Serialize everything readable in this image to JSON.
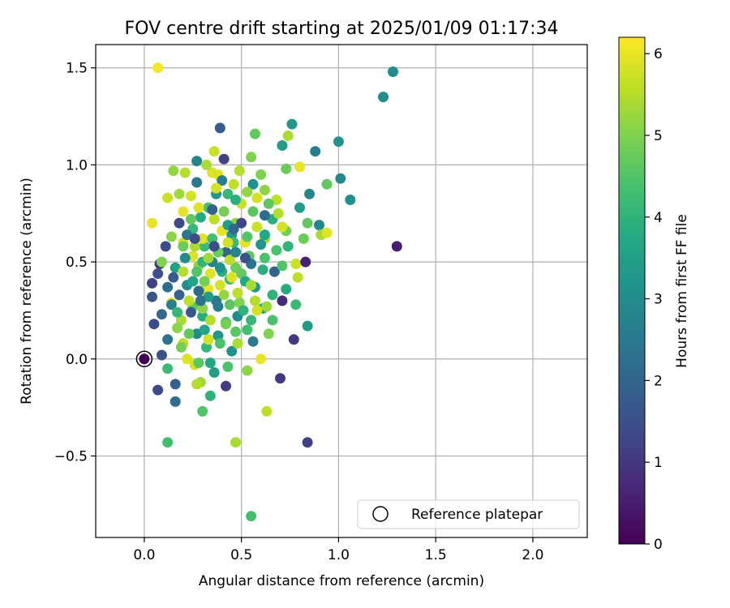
{
  "chart_data": {
    "type": "scatter",
    "title": "FOV centre drift starting at 2025/01/09 01:17:34",
    "xlabel": "Angular distance from reference (arcmin)",
    "ylabel": "Rotation from reference (arcmin)",
    "colorbar_label": "Hours from first FF file",
    "xlim": [
      -0.25,
      2.28
    ],
    "ylim": [
      -0.92,
      1.62
    ],
    "clim": [
      0,
      6.2
    ],
    "x_ticks": [
      0.0,
      0.5,
      1.0,
      1.5,
      2.0
    ],
    "x_tick_labels": [
      "0.0",
      "0.5",
      "1.0",
      "1.5",
      "2.0"
    ],
    "y_ticks": [
      -0.5,
      0.0,
      0.5,
      1.0,
      1.5
    ],
    "y_tick_labels": [
      "−0.5",
      "0.0",
      "0.5",
      "1.0",
      "1.5"
    ],
    "colorbar_ticks": [
      0,
      1,
      2,
      3,
      4,
      5,
      6
    ],
    "colorbar_tick_labels": [
      "0",
      "1",
      "2",
      "3",
      "4",
      "5",
      "6"
    ],
    "colormap": "viridis",
    "grid": true,
    "legend": {
      "placement": "lower-right",
      "entries": [
        {
          "label": "Reference platepar",
          "marker": "open-circle"
        }
      ]
    },
    "reference_point": {
      "x": 0.0,
      "y": 0.0,
      "hours": 0
    },
    "points": [
      [
        0.07,
        1.5,
        6.1
      ],
      [
        1.28,
        1.48,
        3.0
      ],
      [
        1.23,
        1.35,
        3.0
      ],
      [
        0.39,
        1.19,
        1.8
      ],
      [
        0.76,
        1.21,
        3.3
      ],
      [
        0.57,
        1.16,
        4.7
      ],
      [
        0.71,
        1.1,
        3.4
      ],
      [
        0.74,
        1.15,
        5.4
      ],
      [
        1.0,
        1.12,
        3.2
      ],
      [
        0.88,
        1.07,
        2.6
      ],
      [
        0.36,
        1.07,
        5.7
      ],
      [
        0.41,
        1.03,
        1.2
      ],
      [
        0.27,
        1.02,
        2.8
      ],
      [
        0.55,
        1.04,
        5.0
      ],
      [
        0.8,
        0.99,
        6.0
      ],
      [
        0.73,
        0.98,
        4.8
      ],
      [
        0.15,
        0.97,
        5.2
      ],
      [
        0.21,
        0.96,
        5.5
      ],
      [
        1.01,
        0.93,
        2.9
      ],
      [
        1.06,
        0.82,
        3.1
      ],
      [
        0.94,
        0.9,
        4.7
      ],
      [
        0.27,
        0.91,
        2.5
      ],
      [
        0.37,
        0.85,
        3.2
      ],
      [
        0.46,
        0.9,
        5.6
      ],
      [
        0.62,
        0.87,
        5.1
      ],
      [
        0.85,
        0.85,
        2.8
      ],
      [
        0.12,
        0.83,
        5.7
      ],
      [
        0.18,
        0.85,
        5.3
      ],
      [
        0.33,
        0.78,
        4.4
      ],
      [
        0.68,
        0.82,
        5.6
      ],
      [
        0.8,
        0.78,
        3.4
      ],
      [
        0.2,
        0.76,
        6.0
      ],
      [
        0.29,
        0.73,
        3.8
      ],
      [
        0.47,
        0.7,
        5.1
      ],
      [
        0.56,
        0.76,
        4.6
      ],
      [
        0.66,
        0.72,
        3.9
      ],
      [
        0.84,
        0.7,
        4.7
      ],
      [
        0.9,
        0.69,
        2.9
      ],
      [
        0.04,
        0.7,
        6.0
      ],
      [
        0.18,
        0.7,
        1.3
      ],
      [
        0.25,
        0.67,
        4.1
      ],
      [
        0.45,
        0.64,
        3.4
      ],
      [
        0.62,
        0.62,
        5.3
      ],
      [
        0.73,
        0.66,
        4.9
      ],
      [
        0.91,
        0.64,
        5.4
      ],
      [
        0.94,
        0.65,
        5.9
      ],
      [
        0.11,
        0.58,
        1.4
      ],
      [
        0.2,
        0.6,
        5.8
      ],
      [
        0.31,
        0.58,
        4.2
      ],
      [
        0.42,
        0.55,
        2.0
      ],
      [
        0.54,
        0.53,
        4.6
      ],
      [
        0.68,
        0.56,
        4.4
      ],
      [
        0.82,
        0.62,
        4.8
      ],
      [
        0.08,
        0.49,
        1.0
      ],
      [
        0.16,
        0.47,
        3.5
      ],
      [
        0.28,
        0.48,
        5.2
      ],
      [
        0.35,
        0.5,
        2.7
      ],
      [
        0.47,
        0.47,
        4.8
      ],
      [
        0.61,
        0.46,
        3.9
      ],
      [
        0.78,
        0.49,
        5.7
      ],
      [
        0.83,
        0.5,
        0.6
      ],
      [
        1.3,
        0.58,
        0.5
      ],
      [
        0.04,
        0.39,
        1.2
      ],
      [
        0.12,
        0.37,
        2.2
      ],
      [
        0.22,
        0.38,
        3.0
      ],
      [
        0.33,
        0.36,
        6.0
      ],
      [
        0.44,
        0.41,
        4.2
      ],
      [
        0.57,
        0.37,
        3.3
      ],
      [
        0.66,
        0.33,
        4.0
      ],
      [
        0.71,
        0.3,
        0.8
      ],
      [
        0.79,
        0.42,
        5.6
      ],
      [
        0.04,
        0.32,
        1.7
      ],
      [
        0.14,
        0.29,
        6.0
      ],
      [
        0.25,
        0.27,
        4.6
      ],
      [
        0.37,
        0.3,
        2.4
      ],
      [
        0.49,
        0.29,
        5.0
      ],
      [
        0.61,
        0.26,
        3.6
      ],
      [
        0.63,
        0.27,
        5.3
      ],
      [
        0.09,
        0.23,
        2.0
      ],
      [
        0.19,
        0.2,
        5.4
      ],
      [
        0.3,
        0.22,
        3.8
      ],
      [
        0.42,
        0.19,
        4.4
      ],
      [
        0.55,
        0.2,
        4.1
      ],
      [
        0.84,
        0.17,
        3.4
      ],
      [
        0.05,
        0.18,
        1.4
      ],
      [
        0.17,
        0.16,
        5.1
      ],
      [
        0.27,
        0.13,
        2.9
      ],
      [
        0.38,
        0.12,
        3.3
      ],
      [
        0.47,
        0.14,
        4.6
      ],
      [
        0.64,
        0.13,
        5.0
      ],
      [
        0.77,
        0.1,
        1.0
      ],
      [
        0.12,
        0.1,
        2.3
      ],
      [
        0.2,
        0.08,
        5.6
      ],
      [
        0.32,
        0.06,
        4.1
      ],
      [
        0.45,
        0.04,
        3.1
      ],
      [
        0.56,
        0.09,
        2.5
      ],
      [
        0.6,
        0.0,
        6.0
      ],
      [
        0.09,
        0.02,
        1.6
      ],
      [
        0.22,
        0.0,
        5.9
      ],
      [
        0.34,
        -0.02,
        3.7
      ],
      [
        0.43,
        -0.04,
        4.4
      ],
      [
        0.53,
        -0.06,
        5.1
      ],
      [
        0.12,
        -0.05,
        4.2
      ],
      [
        0.26,
        -0.03,
        5.8
      ],
      [
        0.36,
        -0.07,
        3.5
      ],
      [
        0.16,
        -0.13,
        1.9
      ],
      [
        0.29,
        -0.12,
        5.3
      ],
      [
        0.42,
        -0.14,
        1.1
      ],
      [
        0.7,
        -0.1,
        1.0
      ],
      [
        0.07,
        -0.16,
        1.4
      ],
      [
        0.27,
        -0.13,
        5.5
      ],
      [
        0.34,
        -0.19,
        4.0
      ],
      [
        0.16,
        -0.22,
        2.2
      ],
      [
        0.3,
        -0.27,
        4.5
      ],
      [
        0.63,
        -0.27,
        5.6
      ],
      [
        0.47,
        -0.43,
        5.4
      ],
      [
        0.12,
        -0.43,
        4.3
      ],
      [
        0.84,
        -0.43,
        1.2
      ],
      [
        0.55,
        -0.81,
        4.3
      ],
      [
        0.38,
        0.95,
        5.9
      ],
      [
        0.24,
        0.84,
        5.8
      ],
      [
        0.5,
        0.8,
        5.7
      ],
      [
        0.4,
        0.66,
        6.0
      ],
      [
        0.3,
        0.62,
        5.9
      ],
      [
        0.52,
        0.6,
        6.0
      ],
      [
        0.34,
        0.44,
        5.9
      ],
      [
        0.39,
        0.38,
        5.8
      ],
      [
        0.25,
        0.53,
        5.9
      ],
      [
        0.44,
        0.51,
        5.6
      ],
      [
        0.58,
        0.68,
        5.7
      ],
      [
        0.69,
        0.75,
        5.5
      ],
      [
        0.36,
        0.72,
        5.6
      ],
      [
        0.29,
        0.35,
        5.7
      ],
      [
        0.2,
        0.45,
        5.5
      ],
      [
        0.48,
        0.34,
        5.6
      ],
      [
        0.58,
        0.25,
        5.8
      ],
      [
        0.34,
        0.2,
        5.5
      ],
      [
        0.23,
        0.3,
        5.6
      ],
      [
        0.26,
        0.58,
        5.4
      ],
      [
        0.41,
        0.76,
        4.9
      ],
      [
        0.31,
        0.4,
        4.9
      ],
      [
        0.38,
        0.55,
        4.8
      ],
      [
        0.5,
        0.44,
        4.7
      ],
      [
        0.44,
        0.28,
        4.6
      ],
      [
        0.27,
        0.45,
        4.5
      ],
      [
        0.53,
        0.63,
        4.5
      ],
      [
        0.62,
        0.52,
        4.4
      ],
      [
        0.35,
        0.62,
        4.3
      ],
      [
        0.46,
        0.6,
        4.2
      ],
      [
        0.3,
        0.5,
        4.0
      ],
      [
        0.4,
        0.45,
        3.9
      ],
      [
        0.52,
        0.4,
        3.7
      ],
      [
        0.25,
        0.4,
        3.6
      ],
      [
        0.43,
        0.69,
        3.5
      ],
      [
        0.33,
        0.32,
        3.4
      ],
      [
        0.6,
        0.59,
        3.2
      ],
      [
        0.21,
        0.52,
        3.0
      ],
      [
        0.47,
        0.55,
        2.8
      ],
      [
        0.38,
        0.27,
        2.6
      ],
      [
        0.55,
        0.49,
        2.4
      ],
      [
        0.28,
        0.35,
        2.1
      ],
      [
        0.15,
        0.42,
        1.8
      ],
      [
        0.36,
        0.58,
        1.5
      ],
      [
        0.24,
        0.24,
        1.7
      ],
      [
        0.5,
        0.7,
        1.3
      ],
      [
        0.18,
        0.33,
        1.9
      ],
      [
        0.07,
        0.44,
        1.5
      ],
      [
        0.62,
        0.74,
        2.2
      ],
      [
        0.4,
        0.92,
        2.6
      ],
      [
        0.56,
        0.9,
        3.1
      ],
      [
        0.67,
        0.45,
        2.0
      ],
      [
        0.22,
        0.64,
        2.4
      ],
      [
        0.14,
        0.28,
        2.7
      ],
      [
        0.48,
        0.22,
        3.0
      ],
      [
        0.31,
        0.15,
        3.6
      ],
      [
        0.41,
        0.33,
        5.2
      ],
      [
        0.33,
        0.52,
        5.3
      ],
      [
        0.45,
        0.42,
        5.9
      ],
      [
        0.37,
        0.88,
        5.8
      ],
      [
        0.28,
        0.78,
        5.9
      ],
      [
        0.53,
        0.86,
        5.2
      ],
      [
        0.64,
        0.8,
        4.6
      ],
      [
        0.74,
        0.58,
        4.0
      ],
      [
        0.78,
        0.28,
        4.2
      ],
      [
        0.09,
        0.5,
        5.0
      ],
      [
        0.2,
        0.58,
        4.8
      ],
      [
        0.43,
        0.85,
        4.1
      ],
      [
        0.6,
        0.95,
        5.0
      ],
      [
        0.49,
        0.97,
        5.5
      ],
      [
        0.35,
        0.96,
        5.9
      ],
      [
        0.32,
        1.0,
        5.4
      ],
      [
        0.42,
        0.18,
        4.9
      ],
      [
        0.23,
        0.13,
        4.7
      ],
      [
        0.53,
        0.15,
        4.3
      ],
      [
        0.66,
        0.2,
        4.4
      ],
      [
        0.71,
        0.48,
        4.5
      ],
      [
        0.17,
        0.24,
        4.1
      ],
      [
        0.57,
        0.3,
        5.5
      ],
      [
        0.51,
        0.25,
        4.0
      ],
      [
        0.39,
        0.08,
        4.4
      ],
      [
        0.28,
        -0.02,
        4.6
      ],
      [
        0.48,
        0.08,
        5.4
      ],
      [
        0.33,
        0.1,
        5.8
      ],
      [
        0.19,
        0.06,
        4.9
      ],
      [
        0.43,
        0.6,
        5.8
      ],
      [
        0.58,
        0.83,
        5.8
      ],
      [
        0.71,
        0.68,
        5.8
      ],
      [
        0.24,
        0.72,
        4.7
      ],
      [
        0.14,
        0.63,
        5.1
      ],
      [
        0.47,
        0.82,
        3.9
      ],
      [
        0.62,
        0.64,
        3.7
      ],
      [
        0.73,
        0.36,
        3.8
      ],
      [
        0.3,
        0.26,
        5.1
      ],
      [
        0.55,
        0.38,
        5.4
      ],
      [
        0.39,
        0.47,
        3.1
      ],
      [
        0.29,
        0.3,
        2.3
      ],
      [
        0.46,
        0.67,
        2.1
      ],
      [
        0.35,
        0.77,
        1.9
      ],
      [
        0.52,
        0.52,
        1.6
      ],
      [
        0.26,
        0.62,
        1.4
      ]
    ]
  }
}
